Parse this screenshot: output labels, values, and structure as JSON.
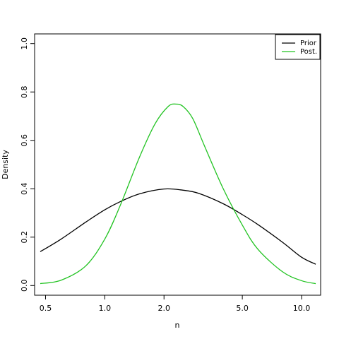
{
  "chart_data": {
    "type": "line",
    "title": "",
    "xlabel": "n",
    "ylabel": "Density",
    "xscale": "log",
    "xlim": [
      0.44,
      12.5
    ],
    "ylim": [
      -0.04,
      1.04
    ],
    "xticks": [
      0.5,
      1.0,
      2.0,
      5.0,
      10.0
    ],
    "xtick_labels": [
      "0.5",
      "1.0",
      "2.0",
      "5.0",
      "10.0"
    ],
    "yticks": [
      0.0,
      0.2,
      0.4,
      0.6,
      0.8,
      1.0
    ],
    "ytick_labels": [
      "0.0",
      "0.2",
      "0.4",
      "0.6",
      "0.8",
      "1.0"
    ],
    "grid": false,
    "legend_position": "top-right",
    "series": [
      {
        "name": "Prior",
        "color": "#000000",
        "x": [
          0.47,
          0.6,
          0.8,
          1.0,
          1.2,
          1.5,
          2.0,
          2.5,
          3.0,
          4.0,
          5.0,
          6.0,
          8.0,
          10.0,
          11.8
        ],
        "y": [
          0.14,
          0.192,
          0.262,
          0.313,
          0.347,
          0.379,
          0.399,
          0.394,
          0.381,
          0.338,
          0.293,
          0.252,
          0.179,
          0.117,
          0.088
        ]
      },
      {
        "name": "Post.",
        "color": "#22c322",
        "x": [
          0.47,
          0.6,
          0.8,
          1.0,
          1.2,
          1.5,
          1.8,
          2.1,
          2.3,
          2.5,
          2.8,
          3.2,
          4.0,
          5.0,
          6.0,
          8.0,
          10.0,
          11.8
        ],
        "y": [
          0.008,
          0.022,
          0.081,
          0.192,
          0.332,
          0.53,
          0.668,
          0.74,
          0.75,
          0.74,
          0.69,
          0.58,
          0.4,
          0.25,
          0.15,
          0.057,
          0.02,
          0.008
        ]
      }
    ]
  }
}
